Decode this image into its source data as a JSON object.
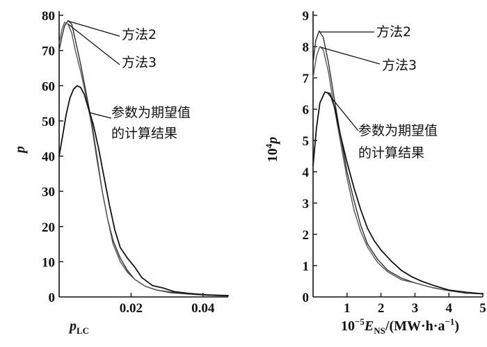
{
  "chart_data": [
    {
      "type": "line",
      "title": "",
      "ylabel": "p",
      "xlabel": {
        "base": "p",
        "sub": "LC"
      },
      "xlim": [
        0.0,
        0.047
      ],
      "ylim": [
        0,
        80
      ],
      "x_ticks": [
        0.02,
        0.04
      ],
      "x_tick_labels": [
        "0.02",
        "0.04"
      ],
      "y_ticks": [
        0,
        10,
        20,
        30,
        40,
        50,
        60,
        70,
        80
      ],
      "y_tick_labels": [
        "0",
        "10",
        "20",
        "30",
        "40",
        "50",
        "60",
        "70",
        "80"
      ],
      "grid": false,
      "series": [
        {
          "name": "方法2",
          "color": "#2a2a2a",
          "points": [
            [
              0.0,
              70
            ],
            [
              0.0008,
              74
            ],
            [
              0.0015,
              77
            ],
            [
              0.0025,
              78.5
            ],
            [
              0.0035,
              77.5
            ],
            [
              0.0045,
              73
            ],
            [
              0.006,
              66
            ],
            [
              0.0075,
              58
            ],
            [
              0.009,
              50
            ],
            [
              0.0105,
              40
            ],
            [
              0.012,
              30
            ],
            [
              0.0135,
              22
            ],
            [
              0.015,
              16
            ],
            [
              0.017,
              11
            ],
            [
              0.019,
              7.5
            ],
            [
              0.021,
              5
            ],
            [
              0.024,
              3
            ],
            [
              0.027,
              2
            ],
            [
              0.031,
              1.2
            ],
            [
              0.036,
              0.8
            ],
            [
              0.041,
              0.5
            ],
            [
              0.047,
              0.3
            ]
          ]
        },
        {
          "name": "方法3",
          "color": "#555555",
          "points": [
            [
              0.0,
              72
            ],
            [
              0.0008,
              76
            ],
            [
              0.0015,
              78
            ],
            [
              0.0025,
              77.5
            ],
            [
              0.0035,
              75
            ],
            [
              0.0045,
              70
            ],
            [
              0.006,
              64
            ],
            [
              0.0075,
              57
            ],
            [
              0.009,
              49
            ],
            [
              0.0105,
              39
            ],
            [
              0.012,
              30
            ],
            [
              0.0135,
              22
            ],
            [
              0.015,
              15
            ],
            [
              0.017,
              10
            ],
            [
              0.019,
              7
            ],
            [
              0.021,
              5
            ],
            [
              0.024,
              3
            ],
            [
              0.027,
              2
            ],
            [
              0.031,
              1.4
            ],
            [
              0.036,
              0.9
            ],
            [
              0.041,
              0.5
            ],
            [
              0.047,
              0.3
            ]
          ]
        },
        {
          "name": "参数为期望值的计算结果",
          "color": "#111111",
          "points": [
            [
              0.0,
              40
            ],
            [
              0.001,
              46
            ],
            [
              0.002,
              52
            ],
            [
              0.003,
              56.5
            ],
            [
              0.004,
              59
            ],
            [
              0.005,
              60
            ],
            [
              0.006,
              59.5
            ],
            [
              0.007,
              57.5
            ],
            [
              0.008,
              54
            ],
            [
              0.0095,
              49
            ],
            [
              0.011,
              42
            ],
            [
              0.0125,
              34
            ],
            [
              0.014,
              26
            ],
            [
              0.0155,
              19
            ],
            [
              0.017,
              14
            ],
            [
              0.019,
              11
            ],
            [
              0.021,
              8.5
            ],
            [
              0.023,
              5.5
            ],
            [
              0.026,
              3.2
            ],
            [
              0.029,
              2.5
            ],
            [
              0.032,
              1.5
            ],
            [
              0.036,
              1
            ],
            [
              0.041,
              0.6
            ],
            [
              0.047,
              0.4
            ]
          ]
        }
      ],
      "annotations": [
        {
          "text": "方法2",
          "series": 0,
          "anchor_x": 0.0027
        },
        {
          "text": "方法3",
          "series": 1,
          "anchor_x": 0.0025
        },
        {
          "text": "参数为期望值",
          "line2": "的计算结果",
          "series": 2,
          "anchor_x": 0.0085
        }
      ]
    },
    {
      "type": "line",
      "title": "",
      "ylabel": {
        "prefix": "10",
        "sup": "4",
        "var": "p"
      },
      "xlabel": {
        "prefix": "10",
        "sup": "−5",
        "var": "E",
        "sub": "NS",
        "unit": "/(MW·h·a",
        "unit_sup": "−1",
        "unit_end": ")"
      },
      "xlim": [
        0,
        5
      ],
      "ylim": [
        0,
        9
      ],
      "x_ticks": [
        1,
        2,
        3,
        4,
        5
      ],
      "x_tick_labels": [
        "1",
        "2",
        "3",
        "4",
        "5"
      ],
      "y_ticks": [
        0,
        1,
        2,
        3,
        4,
        5,
        6,
        7,
        8,
        9
      ],
      "y_tick_labels": [
        "0",
        "1",
        "2",
        "3",
        "4",
        "5",
        "6",
        "7",
        "8",
        "9"
      ],
      "grid": false,
      "series": [
        {
          "name": "方法2",
          "color": "#2a2a2a",
          "points": [
            [
              0.0,
              7.5
            ],
            [
              0.08,
              8.2
            ],
            [
              0.18,
              8.5
            ],
            [
              0.3,
              8.3
            ],
            [
              0.45,
              7.5
            ],
            [
              0.6,
              6.5
            ],
            [
              0.8,
              5.2
            ],
            [
              1.0,
              4.0
            ],
            [
              1.2,
              3.1
            ],
            [
              1.4,
              2.3
            ],
            [
              1.6,
              1.7
            ],
            [
              1.9,
              1.2
            ],
            [
              2.2,
              0.85
            ],
            [
              2.6,
              0.6
            ],
            [
              3.0,
              0.45
            ],
            [
              3.5,
              0.3
            ],
            [
              4.0,
              0.2
            ],
            [
              4.5,
              0.12
            ],
            [
              5.0,
              0.1
            ]
          ]
        },
        {
          "name": "方法3",
          "color": "#555555",
          "points": [
            [
              0.0,
              7.0
            ],
            [
              0.1,
              7.7
            ],
            [
              0.2,
              8.0
            ],
            [
              0.3,
              7.9
            ],
            [
              0.45,
              7.2
            ],
            [
              0.6,
              6.2
            ],
            [
              0.8,
              5.0
            ],
            [
              1.0,
              3.8
            ],
            [
              1.2,
              2.8
            ],
            [
              1.4,
              2.1
            ],
            [
              1.6,
              1.6
            ],
            [
              1.9,
              1.1
            ],
            [
              2.2,
              0.8
            ],
            [
              2.6,
              0.55
            ],
            [
              3.0,
              0.45
            ],
            [
              3.5,
              0.3
            ],
            [
              4.0,
              0.2
            ],
            [
              4.5,
              0.12
            ],
            [
              5.0,
              0.1
            ]
          ]
        },
        {
          "name": "参数为期望值的计算结果",
          "color": "#111111",
          "points": [
            [
              0.0,
              4.2
            ],
            [
              0.1,
              5.4
            ],
            [
              0.2,
              6.2
            ],
            [
              0.35,
              6.55
            ],
            [
              0.5,
              6.5
            ],
            [
              0.65,
              6.0
            ],
            [
              0.8,
              5.2
            ],
            [
              1.0,
              4.3
            ],
            [
              1.2,
              3.5
            ],
            [
              1.4,
              2.8
            ],
            [
              1.6,
              2.2
            ],
            [
              1.8,
              1.8
            ],
            [
              2.0,
              1.5
            ],
            [
              2.3,
              1.15
            ],
            [
              2.6,
              0.85
            ],
            [
              2.9,
              0.65
            ],
            [
              3.2,
              0.5
            ],
            [
              3.6,
              0.35
            ],
            [
              4.0,
              0.22
            ],
            [
              4.5,
              0.15
            ],
            [
              5.0,
              0.1
            ]
          ]
        }
      ],
      "annotations": [
        {
          "text": "方法2",
          "series": 0,
          "anchor_x": 0.2
        },
        {
          "text": "方法3",
          "series": 1,
          "anchor_x": 0.22
        },
        {
          "text": "参数为期望值",
          "line2": "的计算结果",
          "series": 2,
          "anchor_x": 0.42
        }
      ]
    }
  ]
}
